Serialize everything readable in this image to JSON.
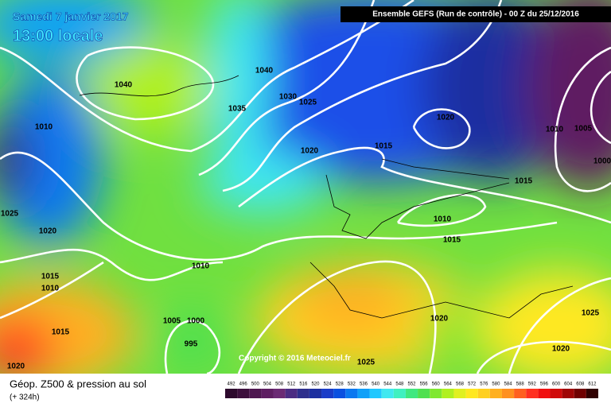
{
  "header": {
    "title": "Samedi 7 janvier 2017",
    "time": "13:00 locale",
    "run": "Ensemble GEFS  (Run de contrôle)  -  00 Z du 25/12/2016"
  },
  "isobar_labels": [
    1040,
    1040,
    1035,
    1030,
    1025,
    1010,
    1020,
    1015,
    1020,
    1010,
    1005,
    1000,
    1015,
    1025,
    1020,
    1010,
    1015,
    1010,
    1015,
    1010,
    1005,
    1000,
    995,
    1015,
    1020,
    1020,
    1025,
    1020,
    1025
  ],
  "copyright": "Copyright © 2016 Meteociel.fr",
  "footer": {
    "title": "Géop. Z500 & pression au sol",
    "lead": "(+ 324h)"
  },
  "legend": {
    "values": [
      492,
      496,
      500,
      504,
      508,
      512,
      516,
      520,
      524,
      528,
      532,
      536,
      540,
      544,
      548,
      552,
      556,
      560,
      564,
      568,
      572,
      576,
      580,
      584,
      588,
      592,
      596,
      600,
      604,
      608,
      612
    ],
    "colors": [
      "#2d0a2d",
      "#3d103d",
      "#4e1750",
      "#5e1e62",
      "#6b2a74",
      "#4b2c83",
      "#2e2f8c",
      "#1c2fa0",
      "#1a3cc8",
      "#0a50e0",
      "#0a78f0",
      "#10a0f8",
      "#20c8ff",
      "#40e8f0",
      "#40f0c0",
      "#40e880",
      "#50e050",
      "#80e830",
      "#b0f020",
      "#e0f020",
      "#ffe820",
      "#ffd020",
      "#ffb020",
      "#ff9020",
      "#ff6020",
      "#ff3020",
      "#f01010",
      "#d00a0a",
      "#a00505",
      "#700000",
      "#300000"
    ]
  }
}
